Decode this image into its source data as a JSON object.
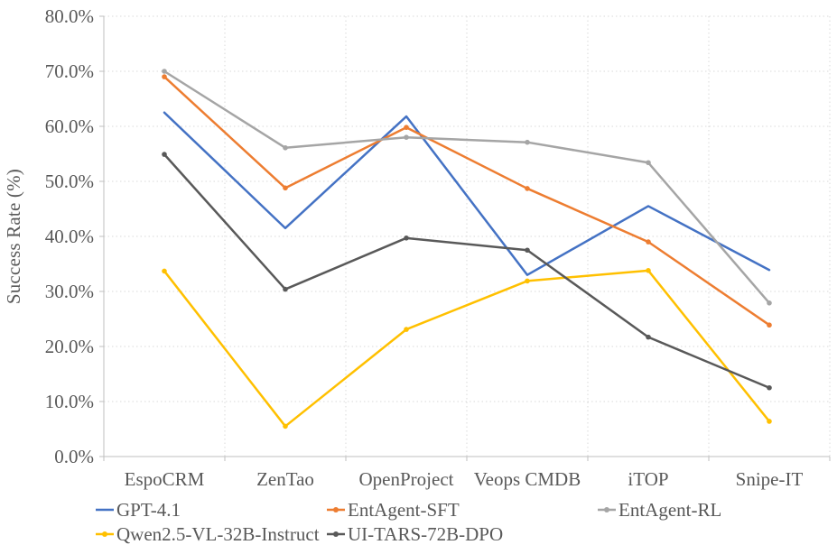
{
  "chart_data": {
    "type": "line",
    "title": "",
    "xlabel": "",
    "ylabel": "Success Rate (%)",
    "categories": [
      "EspoCRM",
      "ZenTao",
      "OpenProject",
      "Veops CMDB",
      "iTOP",
      "Snipe-IT"
    ],
    "series": [
      {
        "name": "GPT-4.1",
        "color": "#4472C4",
        "marker": false,
        "values": [
          62.5,
          41.5,
          61.8,
          33.0,
          45.5,
          33.9
        ]
      },
      {
        "name": "EntAgent-SFT",
        "color": "#ED7D31",
        "marker": true,
        "values": [
          69.0,
          48.8,
          59.8,
          48.7,
          39.0,
          23.9
        ]
      },
      {
        "name": "EntAgent-RL",
        "color": "#A5A5A5",
        "marker": true,
        "values": [
          70.0,
          56.1,
          58.0,
          57.1,
          53.4,
          27.9
        ]
      },
      {
        "name": "Qwen2.5-VL-32B-Instruct",
        "color": "#FFC000",
        "marker": true,
        "values": [
          33.7,
          5.5,
          23.1,
          31.9,
          33.8,
          6.4
        ]
      },
      {
        "name": "UI-TARS-72B-DPO",
        "color": "#595959",
        "marker": true,
        "values": [
          54.9,
          30.4,
          39.7,
          37.5,
          21.7,
          12.5
        ]
      }
    ],
    "ylim": [
      0,
      80
    ],
    "ytick_step": 10,
    "ytick_labels": [
      "0.0%",
      "10.0%",
      "20.0%",
      "30.0%",
      "40.0%",
      "50.0%",
      "60.0%",
      "70.0%",
      "80.0%"
    ],
    "grid": "dotted-horizontal-and-vertical",
    "legend_position": "bottom"
  },
  "colors": {
    "axis": "#BFBFBF",
    "grid": "#D9D9D9",
    "text": "#595959",
    "background": "#FFFFFF"
  }
}
